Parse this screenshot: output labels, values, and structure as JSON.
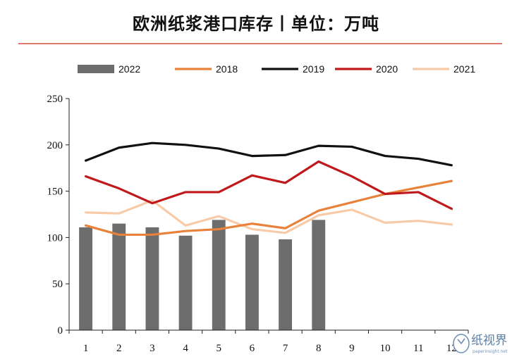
{
  "title": "欧洲纸浆港口库存丨单位：万吨",
  "watermark": {
    "brand": "纸视界",
    "site": "paperinsight.net"
  },
  "chart_data": {
    "type": "bar",
    "categories": [
      "1",
      "2",
      "3",
      "4",
      "5",
      "6",
      "7",
      "8",
      "9",
      "10",
      "11",
      "12"
    ],
    "ylim": [
      0,
      250
    ],
    "yticks": [
      0,
      50,
      100,
      150,
      200,
      250
    ],
    "legend_position": "top",
    "grid": false,
    "series": [
      {
        "name": "2022",
        "type": "bar",
        "color": "#6d6d6d",
        "values": [
          111,
          115,
          111,
          102,
          119,
          103,
          98,
          119,
          null,
          null,
          null,
          null
        ]
      },
      {
        "name": "2018",
        "type": "line",
        "color": "#e8823a",
        "values": [
          113,
          103,
          103,
          107,
          109,
          115,
          110,
          129,
          138,
          147,
          154,
          161
        ]
      },
      {
        "name": "2019",
        "type": "line",
        "color": "#111111",
        "values": [
          183,
          197,
          202,
          200,
          196,
          188,
          189,
          199,
          198,
          188,
          185,
          178
        ]
      },
      {
        "name": "2020",
        "type": "line",
        "color": "#c1191b",
        "values": [
          166,
          153,
          137,
          149,
          149,
          167,
          159,
          182,
          166,
          147,
          149,
          131
        ]
      },
      {
        "name": "2021",
        "type": "line",
        "color": "#f8cba8",
        "values": [
          127,
          126,
          140,
          113,
          123,
          109,
          105,
          124,
          130,
          116,
          118,
          114
        ]
      }
    ]
  }
}
